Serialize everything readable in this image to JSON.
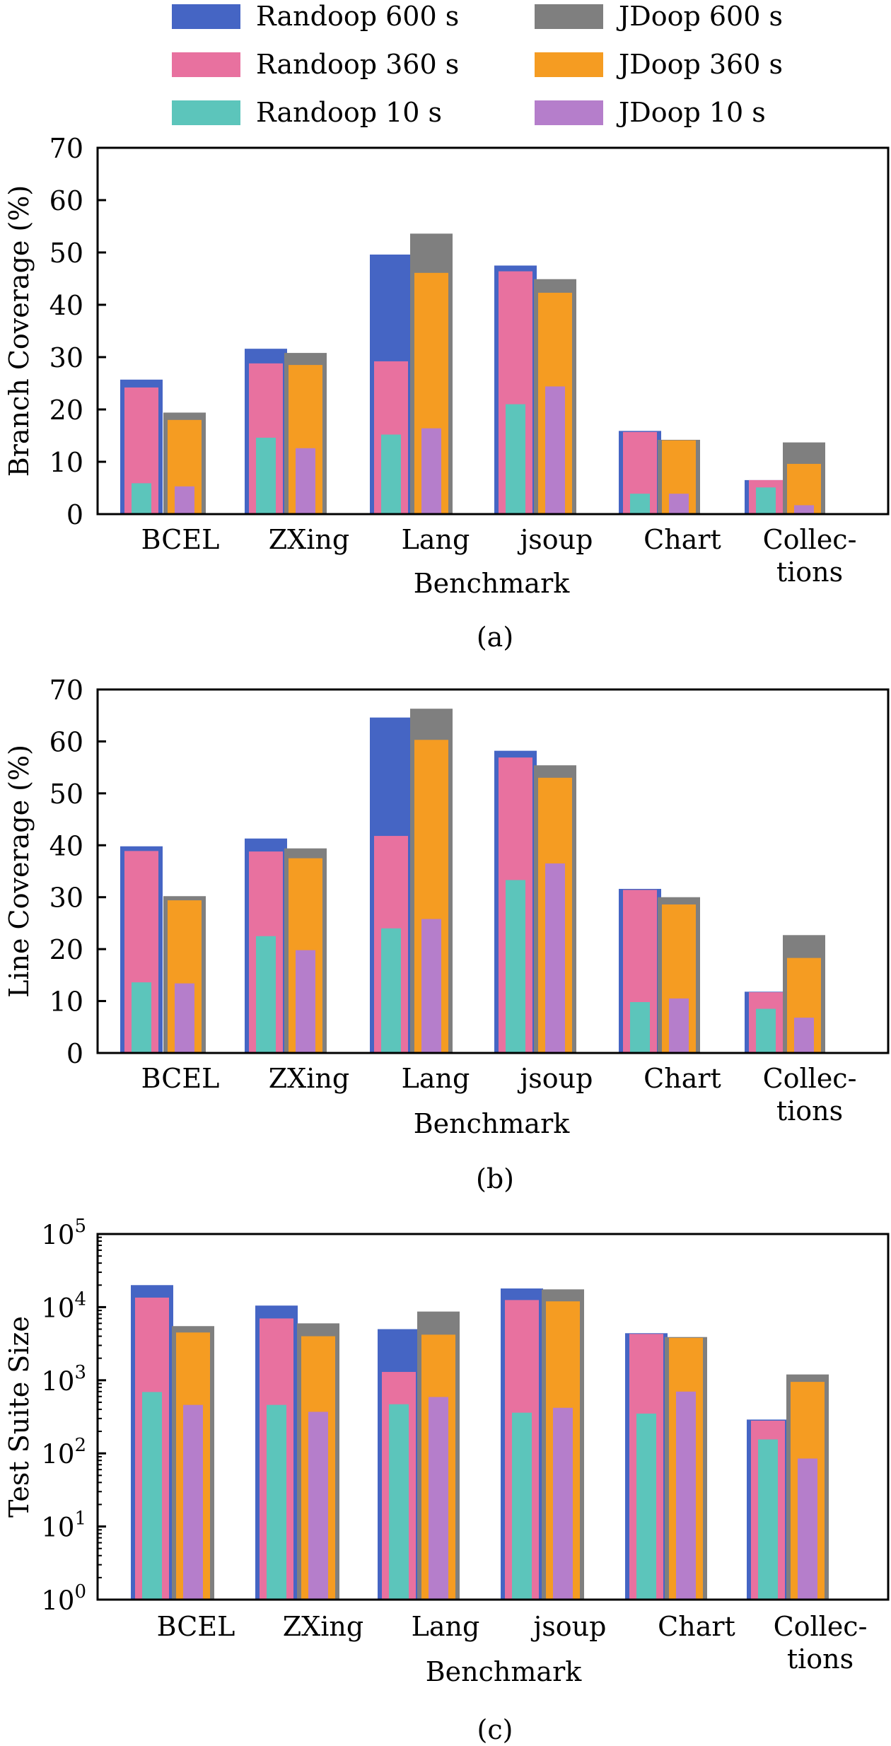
{
  "legend": {
    "items": [
      {
        "label": "Randoop 600 s",
        "color": "#4565c4"
      },
      {
        "label": "JDoop 600 s",
        "color": "#7f7f7f"
      },
      {
        "label": "Randoop 360 s",
        "color": "#e8719f"
      },
      {
        "label": "JDoop 360 s",
        "color": "#f59c22"
      },
      {
        "label": "Randoop 10 s",
        "color": "#5cc5bb"
      },
      {
        "label": "JDoop 10 s",
        "color": "#b57ecb"
      }
    ]
  },
  "chart_data": [
    {
      "type": "bar",
      "caption": "(a)",
      "xlabel": "Benchmark",
      "ylabel": "Branch Coverage (%)",
      "ylim": [
        0,
        70
      ],
      "yticks": [
        "0",
        "10",
        "20",
        "30",
        "40",
        "50",
        "60",
        "70"
      ],
      "yscale": "linear",
      "grid": false,
      "categories": [
        [
          "BCEL"
        ],
        [
          "ZXing"
        ],
        [
          "Lang"
        ],
        [
          "jsoup"
        ],
        [
          "Chart"
        ],
        [
          "Collec-",
          "tions"
        ]
      ],
      "series": [
        {
          "name": "Randoop 600 s",
          "color": "#4565c4",
          "values": [
            25.7,
            31.6,
            49.6,
            47.5,
            15.9,
            6.5
          ]
        },
        {
          "name": "Randoop 360 s",
          "color": "#e8719f",
          "values": [
            24.2,
            28.8,
            29.2,
            46.4,
            15.7,
            6.5
          ]
        },
        {
          "name": "Randoop 10 s",
          "color": "#5cc5bb",
          "values": [
            5.9,
            14.6,
            15.2,
            21.0,
            3.9,
            5.1
          ]
        },
        {
          "name": "JDoop 600 s",
          "color": "#7f7f7f",
          "values": [
            19.4,
            30.8,
            53.6,
            44.9,
            14.2,
            13.7
          ]
        },
        {
          "name": "JDoop 360 s",
          "color": "#f59c22",
          "values": [
            18.0,
            28.5,
            46.1,
            42.3,
            14.1,
            9.6
          ]
        },
        {
          "name": "JDoop 10 s",
          "color": "#b57ecb",
          "values": [
            5.3,
            12.6,
            16.4,
            24.4,
            3.9,
            1.7
          ]
        }
      ]
    },
    {
      "type": "bar",
      "caption": "(b)",
      "xlabel": "Benchmark",
      "ylabel": "Line Coverage (%)",
      "ylim": [
        0,
        70
      ],
      "yticks": [
        "0",
        "10",
        "20",
        "30",
        "40",
        "50",
        "60",
        "70"
      ],
      "yscale": "linear",
      "grid": false,
      "categories": [
        [
          "BCEL"
        ],
        [
          "ZXing"
        ],
        [
          "Lang"
        ],
        [
          "jsoup"
        ],
        [
          "Chart"
        ],
        [
          "Collec-",
          "tions"
        ]
      ],
      "series": [
        {
          "name": "Randoop 600 s",
          "color": "#4565c4",
          "values": [
            39.8,
            41.3,
            64.6,
            58.2,
            31.6,
            11.8
          ]
        },
        {
          "name": "Randoop 360 s",
          "color": "#e8719f",
          "values": [
            38.9,
            38.8,
            41.8,
            56.9,
            31.4,
            11.7
          ]
        },
        {
          "name": "Randoop 10 s",
          "color": "#5cc5bb",
          "values": [
            13.6,
            22.5,
            24.0,
            33.3,
            9.8,
            8.5
          ]
        },
        {
          "name": "JDoop 600 s",
          "color": "#7f7f7f",
          "values": [
            30.2,
            39.4,
            66.3,
            55.4,
            30.0,
            22.7
          ]
        },
        {
          "name": "JDoop 360 s",
          "color": "#f59c22",
          "values": [
            29.4,
            37.5,
            60.3,
            53.0,
            28.6,
            18.3
          ]
        },
        {
          "name": "JDoop 10 s",
          "color": "#b57ecb",
          "values": [
            13.4,
            19.8,
            25.8,
            36.5,
            10.5,
            6.8
          ]
        }
      ]
    },
    {
      "type": "bar",
      "caption": "(c)",
      "xlabel": "Benchmark",
      "ylabel": "Test Suite Size",
      "ylim": [
        1,
        100000
      ],
      "yscale": "log",
      "yticks": [
        [
          "10",
          "0"
        ],
        [
          "10",
          "1"
        ],
        [
          "10",
          "2"
        ],
        [
          "10",
          "3"
        ],
        [
          "10",
          "4"
        ],
        [
          "10",
          "5"
        ]
      ],
      "grid": false,
      "categories": [
        [
          "BCEL"
        ],
        [
          "ZXing"
        ],
        [
          "Lang"
        ],
        [
          "jsoup"
        ],
        [
          "Chart"
        ],
        [
          "Collec-",
          "tions"
        ]
      ],
      "series": [
        {
          "name": "Randoop 600 s",
          "color": "#4565c4",
          "values": [
            20000,
            10500,
            5000,
            18000,
            4400,
            290
          ]
        },
        {
          "name": "Randoop 360 s",
          "color": "#e8719f",
          "values": [
            13500,
            7000,
            1300,
            12500,
            4300,
            280
          ]
        },
        {
          "name": "Randoop 10 s",
          "color": "#5cc5bb",
          "values": [
            690,
            460,
            470,
            360,
            350,
            155
          ]
        },
        {
          "name": "JDoop 600 s",
          "color": "#7f7f7f",
          "values": [
            5500,
            6000,
            8700,
            17500,
            3900,
            1200
          ]
        },
        {
          "name": "JDoop 360 s",
          "color": "#f59c22",
          "values": [
            4500,
            4000,
            4200,
            12000,
            3800,
            950
          ]
        },
        {
          "name": "JDoop 10 s",
          "color": "#b57ecb",
          "values": [
            460,
            370,
            590,
            420,
            700,
            85
          ]
        }
      ]
    }
  ]
}
